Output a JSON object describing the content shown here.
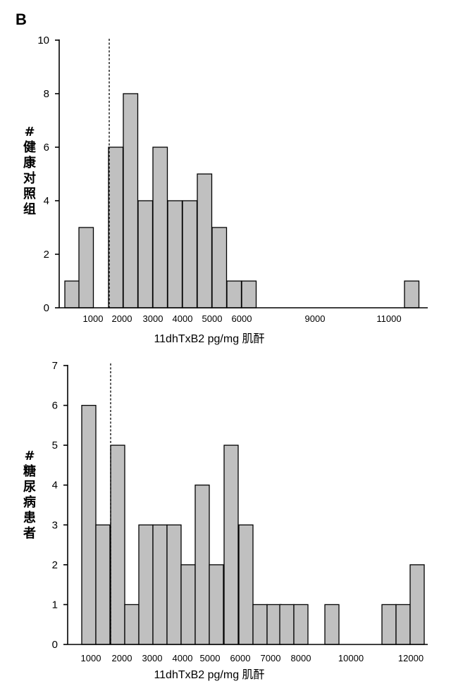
{
  "panel_label": "B",
  "chart_data": [
    {
      "type": "bar",
      "ylabel": "#\n健\n康\n对\n照\n组",
      "xlabel": "11dhTxB2 pg/mg 肌酐",
      "ylim": [
        0,
        10
      ],
      "yticks": [
        0,
        2,
        4,
        6,
        8,
        10
      ],
      "xticks": [
        "1000",
        "2000",
        "3000",
        "4000",
        "5000",
        "6000",
        "9000",
        "11000"
      ],
      "threshold_dashed_line": true,
      "values": [
        1,
        3,
        0,
        6,
        8,
        4,
        6,
        4,
        4,
        5,
        3,
        1,
        1,
        0,
        0,
        0,
        0,
        0,
        0,
        0,
        0,
        0,
        0,
        1
      ]
    },
    {
      "type": "bar",
      "ylabel": "#\n糖\n尿\n病\n患\n者",
      "xlabel": "11dhTxB2 pg/mg 肌酐",
      "ylim": [
        0,
        7
      ],
      "yticks": [
        0,
        1,
        2,
        3,
        4,
        5,
        6,
        7
      ],
      "xticks": [
        "1000",
        "2000",
        "3000",
        "4000",
        "5000",
        "6000",
        "7000",
        "8000",
        "10000",
        "12000"
      ],
      "threshold_dashed_line": true,
      "values": [
        6,
        3,
        5,
        1,
        3,
        3,
        3,
        2,
        4,
        2,
        5,
        3,
        1,
        1,
        1,
        1,
        0,
        1,
        0,
        0,
        0,
        1,
        1,
        2
      ]
    }
  ]
}
